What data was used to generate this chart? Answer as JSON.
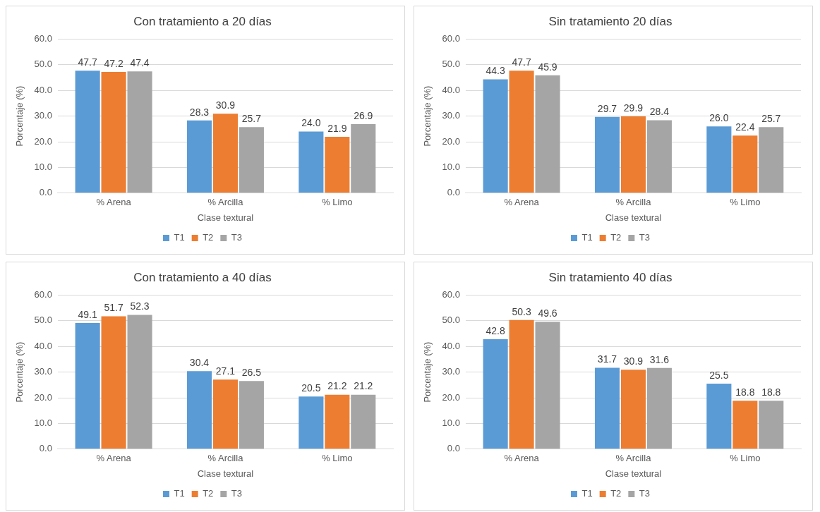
{
  "chart_data": [
    {
      "type": "bar",
      "title": "Con tratamiento a 20 días",
      "xlabel": "Clase textural",
      "ylabel": "Porcentaje (%)",
      "categories": [
        "% Arena",
        "% Arcilla",
        "% Limo"
      ],
      "series": [
        {
          "name": "T1",
          "color": "#5b9bd5",
          "values": [
            47.7,
            28.3,
            24.0
          ],
          "value_labels": [
            "47.7",
            "28.3",
            "24.0"
          ]
        },
        {
          "name": "T2",
          "color": "#ed7d31",
          "values": [
            47.2,
            30.9,
            21.9
          ]
        },
        {
          "name": "T3",
          "color": "#a5a5a5",
          "values": [
            47.4,
            25.7,
            26.9
          ]
        }
      ],
      "ylim": [
        0,
        60
      ],
      "yticks": [
        {
          "value": 0,
          "label": "0.0"
        },
        {
          "value": 10,
          "label": "10.0"
        },
        {
          "value": 20,
          "label": "20.0"
        },
        {
          "value": 30,
          "label": "30.0"
        },
        {
          "value": 40,
          "label": "40.0"
        },
        {
          "value": 50,
          "label": "50.0"
        },
        {
          "value": 60,
          "label": "60.0"
        }
      ],
      "grid": "y",
      "legend": "bottom",
      "data_labels": true
    },
    {
      "type": "bar",
      "title": "Sin tratamiento 20 días",
      "xlabel": "Clase textural",
      "ylabel": "Porcentaje (%)",
      "categories": [
        "% Arena",
        "% Arcilla",
        "% Limo"
      ],
      "series": [
        {
          "name": "T1",
          "color": "#5b9bd5",
          "values": [
            44.3,
            29.7,
            26.0
          ],
          "value_labels": [
            "44.3",
            "29.7",
            "26.0"
          ]
        },
        {
          "name": "T2",
          "color": "#ed7d31",
          "values": [
            47.7,
            29.9,
            22.4
          ]
        },
        {
          "name": "T3",
          "color": "#a5a5a5",
          "values": [
            45.9,
            28.4,
            25.7
          ]
        }
      ],
      "ylim": [
        0,
        60
      ],
      "yticks": [
        {
          "value": 0,
          "label": "0.0"
        },
        {
          "value": 10,
          "label": "10.0"
        },
        {
          "value": 20,
          "label": "20.0"
        },
        {
          "value": 30,
          "label": "30.0"
        },
        {
          "value": 40,
          "label": "40.0"
        },
        {
          "value": 50,
          "label": "50.0"
        },
        {
          "value": 60,
          "label": "60.0"
        }
      ],
      "grid": "y",
      "legend": "bottom",
      "data_labels": true
    },
    {
      "type": "bar",
      "title": "Con tratamiento a 40 días",
      "xlabel": "Clase textural",
      "ylabel": "Porcentaje (%)",
      "categories": [
        "% Arena",
        "% Arcilla",
        "% Limo"
      ],
      "series": [
        {
          "name": "T1",
          "color": "#5b9bd5",
          "values": [
            49.1,
            30.4,
            20.5
          ]
        },
        {
          "name": "T2",
          "color": "#ed7d31",
          "values": [
            51.7,
            27.1,
            21.2
          ]
        },
        {
          "name": "T3",
          "color": "#a5a5a5",
          "values": [
            52.3,
            26.5,
            21.2
          ]
        }
      ],
      "ylim": [
        0,
        60
      ],
      "yticks": [
        {
          "value": 0,
          "label": "0.0"
        },
        {
          "value": 10,
          "label": "10.0"
        },
        {
          "value": 20,
          "label": "20.0"
        },
        {
          "value": 30,
          "label": "30.0"
        },
        {
          "value": 40,
          "label": "40.0"
        },
        {
          "value": 50,
          "label": "50.0"
        },
        {
          "value": 60,
          "label": "60.0"
        }
      ],
      "grid": "y",
      "legend": "bottom",
      "data_labels": true
    },
    {
      "type": "bar",
      "title": "Sin tratamiento 40 días",
      "xlabel": "Clase textural",
      "ylabel": "Porcentaje (%)",
      "categories": [
        "% Arena",
        "% Arcilla",
        "% Limo"
      ],
      "series": [
        {
          "name": "T1",
          "color": "#5b9bd5",
          "values": [
            42.8,
            31.7,
            25.5
          ]
        },
        {
          "name": "T2",
          "color": "#ed7d31",
          "values": [
            50.3,
            30.9,
            18.8
          ]
        },
        {
          "name": "T3",
          "color": "#a5a5a5",
          "values": [
            49.6,
            31.6,
            18.8
          ]
        }
      ],
      "ylim": [
        0,
        60
      ],
      "yticks": [
        {
          "value": 0,
          "label": "0.0"
        },
        {
          "value": 10,
          "label": "10.0"
        },
        {
          "value": 20,
          "label": "20.0"
        },
        {
          "value": 30,
          "label": "30.0"
        },
        {
          "value": 40,
          "label": "40.0"
        },
        {
          "value": 50,
          "label": "50.0"
        },
        {
          "value": 60,
          "label": "60.0"
        }
      ],
      "grid": "y",
      "legend": "bottom",
      "data_labels": true
    }
  ]
}
